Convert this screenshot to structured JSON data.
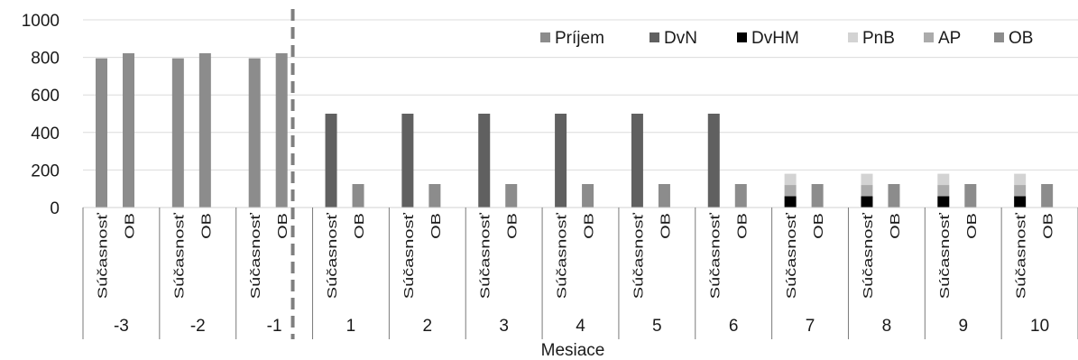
{
  "chart_data": {
    "type": "bar",
    "stacked": true,
    "xlabel": "Mesiace",
    "ylim": [
      0,
      1000
    ],
    "yticks": [
      0,
      200,
      400,
      600,
      800,
      1000
    ],
    "grid": true,
    "legend_position": "top-right",
    "groups": [
      "-3",
      "-2",
      "-1",
      "1",
      "2",
      "3",
      "4",
      "5",
      "6",
      "7",
      "8",
      "9",
      "10"
    ],
    "subcategories": [
      "Súčasnosť",
      "OB"
    ],
    "divider_after_group": "-1",
    "legend": [
      {
        "name": "Príjem",
        "color": "#8c8c8c"
      },
      {
        "name": "DvN",
        "color": "#606060"
      },
      {
        "name": "DvHM",
        "color": "#000000"
      },
      {
        "name": "PnB",
        "color": "#d3d3d3"
      },
      {
        "name": "AP",
        "color": "#ababab"
      },
      {
        "name": "OB",
        "color": "#8c8c8c"
      }
    ],
    "series": [
      {
        "name": "Príjem",
        "stack": "Súčasnosť",
        "values": [
          795,
          795,
          795,
          0,
          0,
          0,
          0,
          0,
          0,
          0,
          0,
          0,
          0
        ]
      },
      {
        "name": "DvN",
        "stack": "Súčasnosť",
        "values": [
          0,
          0,
          0,
          500,
          500,
          500,
          500,
          500,
          500,
          0,
          0,
          0,
          0
        ]
      },
      {
        "name": "DvHM",
        "stack": "Súčasnosť",
        "values": [
          0,
          0,
          0,
          0,
          0,
          0,
          0,
          0,
          0,
          60,
          60,
          60,
          60
        ]
      },
      {
        "name": "AP",
        "stack": "Súčasnosť",
        "values": [
          0,
          0,
          0,
          0,
          0,
          0,
          0,
          0,
          0,
          60,
          60,
          60,
          60
        ]
      },
      {
        "name": "PnB",
        "stack": "Súčasnosť",
        "values": [
          0,
          0,
          0,
          0,
          0,
          0,
          0,
          0,
          0,
          60,
          60,
          60,
          60
        ]
      },
      {
        "name": "OB",
        "stack": "OB",
        "values": [
          822,
          822,
          822,
          125,
          125,
          125,
          125,
          125,
          125,
          125,
          125,
          125,
          125
        ]
      }
    ]
  }
}
